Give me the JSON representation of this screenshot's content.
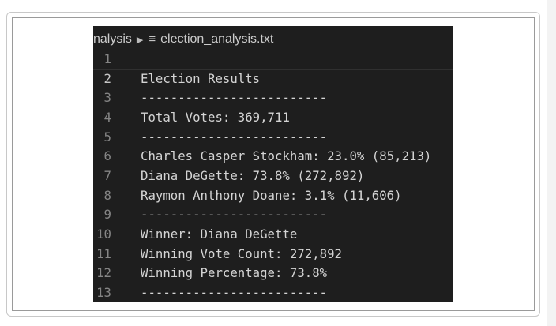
{
  "breadcrumb": {
    "folder": "nalysis",
    "file": "election_analysis.txt"
  },
  "current_line": 2,
  "lines": [
    {
      "number": 1
    },
    {
      "number": 2,
      "text": "Election Results"
    },
    {
      "number": 3,
      "text": "-------------------------"
    },
    {
      "number": 4,
      "text": "Total Votes: 369,711"
    },
    {
      "number": 5,
      "text": "-------------------------"
    },
    {
      "number": 6,
      "text": "Charles Casper Stockham: 23.0% (85,213)"
    },
    {
      "number": 7,
      "text": "Diana DeGette: 73.8% (272,892)"
    },
    {
      "number": 8,
      "text": "Raymon Anthony Doane: 3.1% (11,606)"
    },
    {
      "number": 9,
      "text": "-------------------------"
    },
    {
      "number": 10,
      "text": "Winner: Diana DeGette"
    },
    {
      "number": 11,
      "text": "Winning Vote Count: 272,892"
    },
    {
      "number": 12,
      "text": "Winning Percentage: 73.8%"
    },
    {
      "number": 13,
      "text": "-------------------------"
    }
  ]
}
